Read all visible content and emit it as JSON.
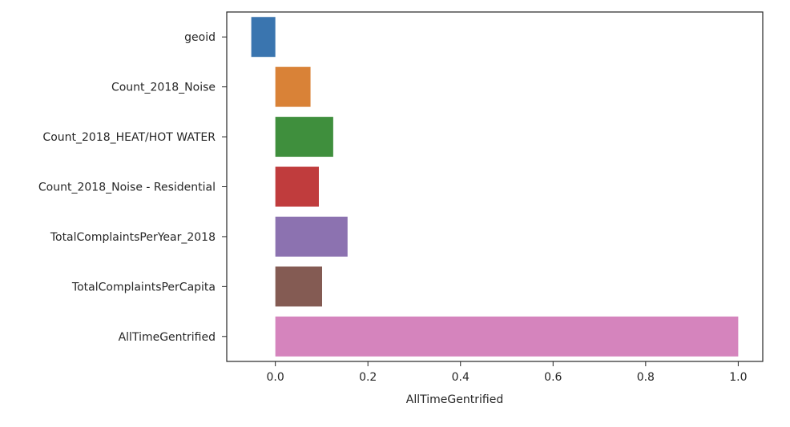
{
  "chart_data": {
    "type": "bar",
    "orientation": "horizontal",
    "categories": [
      "geoid",
      "Count_2018_Noise",
      "Count_2018_HEAT/HOT WATER",
      "Count_2018_Noise - Residential",
      "TotalComplaintsPerYear_2018",
      "TotalComplaintsPerCapita",
      "AllTimeGentrified"
    ],
    "values": [
      -0.052,
      0.076,
      0.125,
      0.094,
      0.156,
      0.101,
      1.0
    ],
    "colors": [
      "#3a75af",
      "#d98237",
      "#3f8f3d",
      "#c03c3d",
      "#8c72b0",
      "#845b53",
      "#d584bd"
    ],
    "xlabel": "AllTimeGentrified",
    "ylabel": "",
    "xlim": [
      -0.105,
      1.053
    ],
    "xticks": [
      0.0,
      0.2,
      0.4,
      0.6,
      0.8,
      1.0
    ],
    "xtick_labels": [
      "0.0",
      "0.2",
      "0.4",
      "0.6",
      "0.8",
      "1.0"
    ],
    "grid": false
  }
}
